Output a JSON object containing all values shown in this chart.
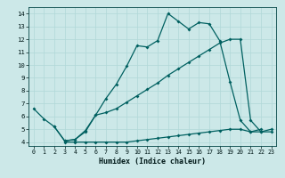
{
  "xlabel": "Humidex (Indice chaleur)",
  "bg_color": "#cce8e8",
  "grid_color": "#b0d8d8",
  "line_color": "#006060",
  "xlim_min": -0.5,
  "xlim_max": 23.5,
  "ylim_min": 3.7,
  "ylim_max": 14.5,
  "xticks": [
    0,
    1,
    2,
    3,
    4,
    5,
    6,
    7,
    8,
    9,
    10,
    11,
    12,
    13,
    14,
    15,
    16,
    17,
    18,
    19,
    20,
    21,
    22,
    23
  ],
  "yticks": [
    4,
    5,
    6,
    7,
    8,
    9,
    10,
    11,
    12,
    13,
    14
  ],
  "curve1_x": [
    0,
    1,
    2,
    3,
    4,
    5,
    6,
    7,
    8,
    9,
    10,
    11,
    12,
    13,
    14,
    15,
    16,
    17,
    18,
    19,
    20,
    21,
    22
  ],
  "curve1_y": [
    6.6,
    5.8,
    5.2,
    4.1,
    4.2,
    4.8,
    6.1,
    7.4,
    8.5,
    9.9,
    11.5,
    11.4,
    11.9,
    14.0,
    13.4,
    12.8,
    13.3,
    13.2,
    11.9,
    8.7,
    5.7,
    4.8,
    5.0
  ],
  "curve2_x": [
    2,
    3,
    4,
    5,
    6,
    7,
    8,
    9,
    10,
    11,
    12,
    13,
    14,
    15,
    16,
    17,
    18,
    19,
    20,
    21,
    22,
    23
  ],
  "curve2_y": [
    5.2,
    4.1,
    4.2,
    4.9,
    6.1,
    6.3,
    6.6,
    7.1,
    7.6,
    8.1,
    8.6,
    9.2,
    9.7,
    10.2,
    10.7,
    11.2,
    11.7,
    12.0,
    12.0,
    5.7,
    4.8,
    5.0
  ],
  "curve3_x": [
    3,
    4,
    5,
    6,
    7,
    8,
    9,
    10,
    11,
    12,
    13,
    14,
    15,
    16,
    17,
    18,
    19,
    20,
    21,
    22,
    23
  ],
  "curve3_y": [
    4.0,
    4.0,
    4.0,
    4.0,
    4.0,
    4.0,
    4.0,
    4.1,
    4.2,
    4.3,
    4.4,
    4.5,
    4.6,
    4.7,
    4.8,
    4.9,
    5.0,
    5.0,
    4.8,
    4.8,
    4.8
  ]
}
